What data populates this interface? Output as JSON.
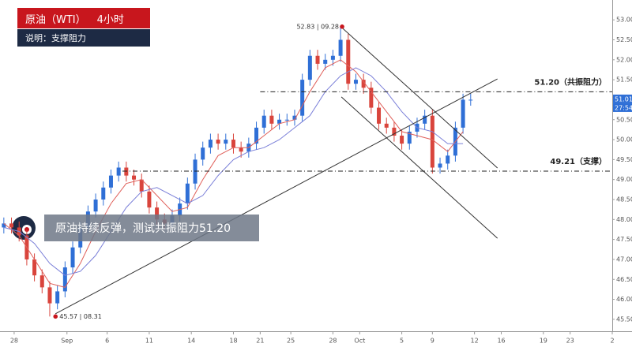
{
  "chart_data": {
    "type": "candlestick",
    "xlim": [
      0,
      160
    ],
    "xticks": [
      {
        "value": 3.7,
        "label": "28"
      },
      {
        "value": 17.5,
        "label": "Sep"
      },
      {
        "value": 28,
        "label": "6"
      },
      {
        "value": 39,
        "label": "11"
      },
      {
        "value": 50,
        "label": "14"
      },
      {
        "value": 61,
        "label": "18"
      },
      {
        "value": 68,
        "label": "21"
      },
      {
        "value": 76,
        "label": "25"
      },
      {
        "value": 87,
        "label": "28"
      },
      {
        "value": 94,
        "label": "Oct"
      },
      {
        "value": 105,
        "label": "5"
      },
      {
        "value": 113,
        "label": "9"
      },
      {
        "value": 124,
        "label": "12"
      },
      {
        "value": 131,
        "label": "16"
      },
      {
        "value": 142,
        "label": "19"
      },
      {
        "value": 149,
        "label": "23"
      },
      {
        "value": 160,
        "label": "2"
      }
    ],
    "ylim": [
      45.3,
      53.3
    ],
    "yticks": [
      {
        "value": 45.5,
        "label": "45.50"
      },
      {
        "value": 46,
        "label": "46.00"
      },
      {
        "value": 46.5,
        "label": "46.50"
      },
      {
        "value": 47,
        "label": "47.00"
      },
      {
        "value": 47.5,
        "label": "47.50"
      },
      {
        "value": 48,
        "label": "48.00"
      },
      {
        "value": 48.5,
        "label": "48.50"
      },
      {
        "value": 49,
        "label": "49.00"
      },
      {
        "value": 49.5,
        "label": "49.50"
      },
      {
        "value": 50,
        "label": "50.00"
      },
      {
        "value": 50.5,
        "label": "50.50"
      },
      {
        "value": 51,
        "label": "51.00"
      },
      {
        "value": 51.5,
        "label": "51.50"
      },
      {
        "value": 52,
        "label": "52.00"
      },
      {
        "value": 52.5,
        "label": "52.50"
      },
      {
        "value": 53,
        "label": "53.00"
      }
    ],
    "up_color": "#2f6fd6",
    "down_color": "#d9443c",
    "candles": {
      "x": [
        1,
        3,
        5,
        7,
        9,
        11,
        13,
        15,
        17,
        19,
        21,
        23,
        25,
        27,
        29,
        31,
        33,
        35,
        37,
        39,
        41,
        43,
        45,
        47,
        49,
        51,
        53,
        55,
        57,
        59,
        61,
        63,
        65,
        67,
        69,
        71,
        73,
        75,
        77,
        79,
        81,
        83,
        85,
        87,
        89,
        91,
        93,
        95,
        97,
        99,
        101,
        103,
        105,
        107,
        109,
        111,
        113,
        115,
        117,
        119,
        121,
        123
      ],
      "open": [
        47.8,
        47.9,
        47.8,
        47.6,
        47.0,
        46.6,
        46.3,
        45.9,
        46.2,
        46.8,
        47.3,
        47.8,
        48.2,
        48.5,
        48.8,
        49.1,
        49.3,
        49.1,
        49.0,
        48.7,
        48.3,
        48.0,
        47.9,
        48.1,
        48.4,
        48.9,
        49.5,
        49.8,
        50.0,
        49.9,
        50.0,
        49.8,
        49.7,
        49.9,
        50.3,
        50.6,
        50.4,
        50.5,
        50.5,
        50.6,
        51.5,
        52.1,
        51.9,
        52.0,
        52.1,
        52.5,
        51.4,
        51.5,
        51.3,
        50.8,
        50.4,
        50.3,
        50.1,
        49.9,
        50.2,
        50.4,
        50.6,
        49.3,
        49.4,
        49.6,
        50.3,
        51.0
      ],
      "high": [
        48.05,
        48.05,
        47.95,
        47.75,
        47.15,
        46.75,
        46.45,
        46.35,
        46.95,
        47.45,
        47.95,
        48.35,
        48.65,
        48.95,
        49.25,
        49.45,
        49.45,
        49.25,
        49.15,
        48.85,
        48.45,
        48.15,
        48.25,
        48.55,
        49.05,
        49.65,
        49.95,
        50.15,
        50.15,
        50.15,
        50.15,
        49.95,
        50.05,
        50.45,
        50.75,
        50.75,
        50.65,
        50.65,
        50.75,
        51.65,
        52.25,
        52.25,
        52.15,
        52.25,
        52.83,
        52.65,
        51.65,
        51.65,
        51.45,
        50.95,
        50.55,
        50.45,
        50.25,
        50.35,
        50.55,
        50.75,
        50.75,
        49.55,
        49.75,
        50.45,
        51.15,
        51.15
      ],
      "low": [
        47.65,
        47.65,
        47.45,
        46.85,
        46.45,
        46.15,
        45.57,
        45.75,
        46.05,
        46.65,
        47.15,
        47.65,
        48.05,
        48.35,
        48.65,
        48.95,
        48.95,
        48.85,
        48.55,
        48.15,
        47.85,
        47.75,
        47.75,
        47.95,
        48.25,
        48.75,
        49.35,
        49.65,
        49.75,
        49.75,
        49.65,
        49.55,
        49.55,
        49.75,
        50.15,
        50.25,
        50.25,
        50.35,
        50.35,
        50.45,
        51.35,
        51.75,
        51.75,
        51.85,
        51.95,
        51.25,
        51.25,
        51.15,
        50.65,
        50.25,
        50.15,
        49.95,
        49.75,
        49.75,
        50.05,
        50.25,
        49.15,
        49.15,
        49.25,
        49.45,
        50.15,
        50.85
      ],
      "close": [
        47.9,
        47.8,
        47.6,
        47.0,
        46.6,
        46.3,
        45.9,
        46.2,
        46.8,
        47.3,
        47.8,
        48.2,
        48.5,
        48.8,
        49.1,
        49.3,
        49.1,
        49.0,
        48.7,
        48.3,
        48.0,
        47.9,
        48.1,
        48.4,
        48.9,
        49.5,
        49.8,
        50.0,
        49.9,
        50.0,
        49.8,
        49.7,
        49.9,
        50.3,
        50.6,
        50.4,
        50.5,
        50.5,
        50.6,
        51.5,
        52.1,
        51.9,
        52.0,
        52.1,
        52.5,
        51.4,
        51.5,
        51.3,
        50.8,
        50.4,
        50.3,
        50.1,
        49.9,
        50.2,
        50.4,
        50.6,
        49.3,
        49.4,
        49.6,
        50.3,
        51.0,
        51.0
      ]
    },
    "moving_averages": [
      {
        "color": "#e0605a",
        "x": [
          1,
          5,
          9,
          13,
          17,
          21,
          25,
          29,
          33,
          37,
          41,
          45,
          49,
          53,
          57,
          61,
          65,
          69,
          73,
          77,
          81,
          85,
          89,
          93,
          97,
          101,
          105,
          109,
          113,
          117,
          121
        ],
        "values": [
          47.9,
          47.6,
          47.0,
          46.4,
          46.3,
          46.9,
          47.7,
          48.4,
          48.9,
          49.0,
          48.6,
          48.2,
          48.3,
          49.0,
          49.6,
          49.8,
          49.8,
          50.1,
          50.4,
          50.5,
          51.2,
          51.8,
          52.0,
          51.7,
          51.2,
          50.7,
          50.2,
          50.1,
          50.0,
          49.7,
          50.2
        ]
      },
      {
        "color": "#7a7fd8",
        "x": [
          1,
          5,
          9,
          13,
          17,
          21,
          25,
          29,
          33,
          37,
          41,
          45,
          49,
          53,
          57,
          61,
          65,
          69,
          73,
          77,
          81,
          85,
          89,
          93,
          97,
          101,
          105,
          109,
          113,
          117,
          121
        ],
        "values": [
          47.8,
          47.7,
          47.4,
          46.9,
          46.6,
          46.7,
          47.1,
          47.7,
          48.3,
          48.7,
          48.8,
          48.6,
          48.4,
          48.6,
          49.1,
          49.5,
          49.7,
          49.8,
          50.0,
          50.3,
          50.6,
          51.2,
          51.6,
          51.8,
          51.6,
          51.2,
          50.7,
          50.3,
          50.2,
          49.9,
          49.9
        ]
      }
    ],
    "trendlines": [
      {
        "x": [
          14.5,
          130
        ],
        "y": [
          45.64,
          51.52
        ]
      },
      {
        "x": [
          89.4,
          130
        ],
        "y": [
          52.8,
          49.29
        ]
      },
      {
        "x": [
          89.2,
          130
        ],
        "y": [
          51.07,
          47.53
        ]
      }
    ],
    "levels": [
      {
        "value": 51.2,
        "label": "51.20（共振阻力）",
        "x": [
          68,
          160
        ]
      },
      {
        "value": 49.21,
        "label": "49.21（支撑）",
        "x": [
          32,
          160
        ]
      }
    ],
    "points": [
      {
        "x": 89.4,
        "y": 52.83,
        "label": "52.83 | 09.28"
      },
      {
        "x": 14.5,
        "y": 45.57,
        "label": "45.57 | 08.31"
      }
    ],
    "last_price": {
      "value": 51.01,
      "label": "51.01"
    },
    "countdown": "27:54"
  },
  "header": {
    "title": "原油（WTI）",
    "timeframe": "4小时",
    "note": "说明：支撑阻力"
  },
  "callout": "原油持续反弹，测试共振阻力51.20"
}
